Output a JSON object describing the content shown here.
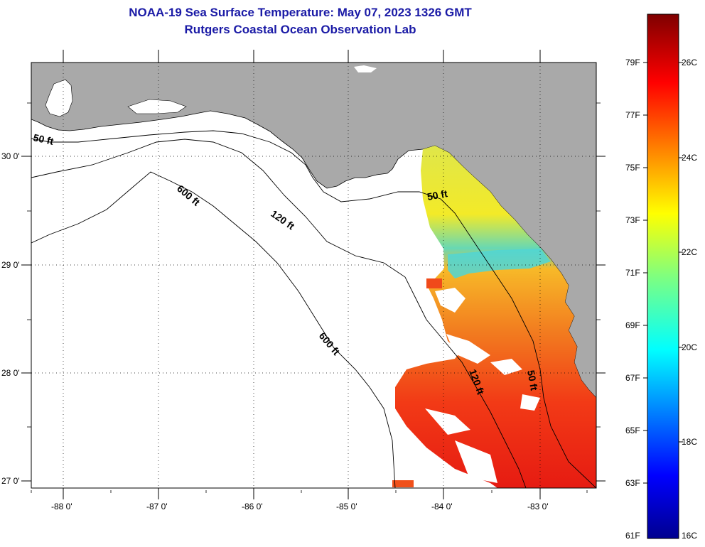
{
  "header": {
    "title": "NOAA-19 Sea Surface Temperature:  May 07, 2023 1326 GMT",
    "subtitle": "Rutgers Coastal Ocean Observation Lab"
  },
  "map": {
    "lat_labels": [
      "30 0'",
      "29 0'",
      "28 0'",
      "27 0'"
    ],
    "lon_labels": [
      "-88 0'",
      "-87 0'",
      "-86 0'",
      "-85 0'",
      "-84 0'",
      "-83 0'"
    ],
    "contours": [
      "50 ft",
      "600 ft",
      "120 ft",
      "600 ft",
      "50 ft",
      "120 ft",
      "50 ft"
    ],
    "colors": {
      "land": "#a9a9a9",
      "water": "#ffffff",
      "nodata": "#ffffff"
    }
  },
  "colorbar": {
    "fahrenheit": [
      "79F",
      "77F",
      "75F",
      "73F",
      "71F",
      "69F",
      "67F",
      "65F",
      "63F",
      "61F"
    ],
    "celsius": [
      "26C",
      "24C",
      "22C",
      "20C",
      "18C",
      "16C"
    ]
  }
}
